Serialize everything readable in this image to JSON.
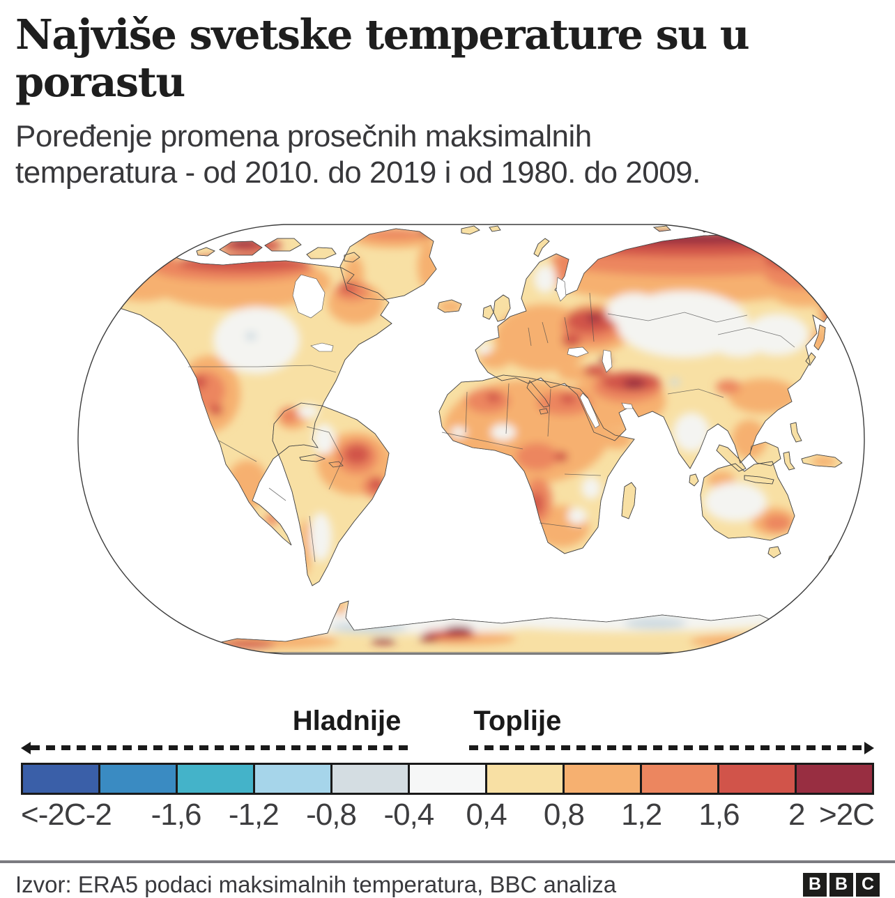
{
  "header": {
    "title": "Najviše svetske temperature su u porastu",
    "subtitle": "Poređenje promena prosečnih maksimalnih\ntemperatura - od 2010. do 2019 i od 1980. do 2009."
  },
  "legend": {
    "colder_label": "Hladnije",
    "warmer_label": "Toplije"
  },
  "colorbar": {
    "segment_colors": [
      "#3a5fa8",
      "#3a8bc2",
      "#44b3c9",
      "#a6d5ea",
      "#d4dde2",
      "#f6f7f7",
      "#f8e0a4",
      "#f6b070",
      "#ec865f",
      "#d1544a",
      "#982e41"
    ],
    "tick_labels": [
      "<-2C",
      "-2",
      "-1,6",
      "-1,2",
      "-0,8",
      "-0,4",
      "0,4",
      "0,8",
      "1,2",
      "1,6",
      "2",
      ">2C"
    ]
  },
  "footer": {
    "source": "Izvor: ERA5 podaci maksimalnih temperatura, BBC analiza",
    "logo_letters": [
      "B",
      "B",
      "C"
    ]
  },
  "chart_data": {
    "type": "heatmap",
    "title": "Najviše svetske temperature su u porastu",
    "subtitle": "Poređenje promena prosečnih maksimalnih temperatura - od 2010. do 2019 i od 1980. do 2009.",
    "map": "World map (Robinson projection); land colored by change in average maximum temperature, 2010-2019 vs 1980-2009, in degrees C; oceans white",
    "units": "°C",
    "legend_direction_labels": {
      "colder": "Hladnije",
      "warmer": "Toplije"
    },
    "scale_bin_edges_c": [
      -2,
      -1.6,
      -1.2,
      -0.8,
      -0.4,
      0.4,
      0.8,
      1.2,
      1.6,
      2
    ],
    "scale_colors": [
      "#3a5fa8",
      "#3a8bc2",
      "#44b3c9",
      "#a6d5ea",
      "#d4dde2",
      "#f6f7f7",
      "#f8e0a4",
      "#f6b070",
      "#ec865f",
      "#d1544a",
      "#982e41"
    ],
    "scale_tick_labels": [
      "<-2C",
      "-2",
      "-1,6",
      "-1,2",
      "-0,8",
      "-0,4",
      "0,4",
      "0,8",
      "1,2",
      "1,6",
      "2",
      ">2C"
    ],
    "notable_patterns": [
      {
        "region": "Siberian Arctic coast and Arctic islands",
        "anomaly_c": ">2"
      },
      {
        "region": "Northern Canada and northern Alaska",
        "anomaly_c": "1.6 to >2"
      },
      {
        "region": "Eastern Europe, Balkans, Turkey, Iran, Middle East",
        "anomaly_c": "1.2 to >2"
      },
      {
        "region": "Central North America (US-Canada plains)",
        "anomaly_c": "-0.4 to 0.4"
      },
      {
        "region": "Central Asia, Kazakhstan, Mongolia, NE China",
        "anomaly_c": "-0.4 to 0.4"
      },
      {
        "region": "Most of Africa, South America, southern Asia, Australia",
        "anomaly_c": "0.4 to 1.2 with local spots 1.2-2"
      },
      {
        "region": "Antarctica interior",
        "anomaly_c": "-0.4 to 0.4, coastal hotspots >2"
      }
    ],
    "source": "ERA5 podaci maksimalnih temperatura, BBC analiza"
  }
}
